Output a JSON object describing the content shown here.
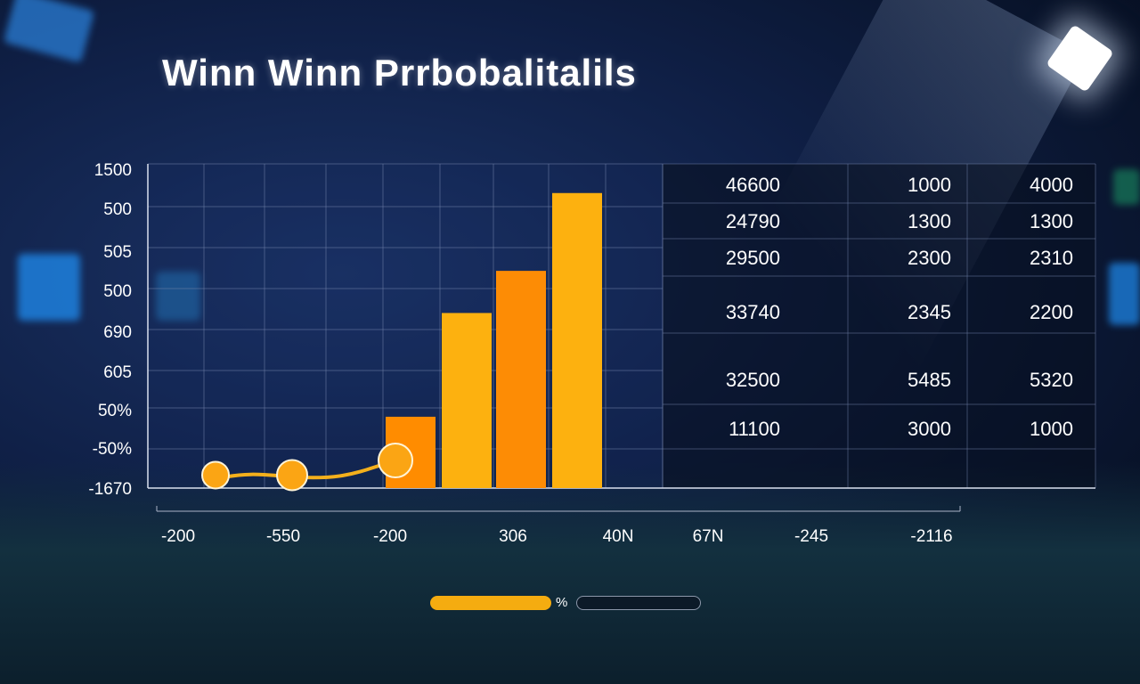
{
  "title": "Winn Winn Prrbobalitalils",
  "chart_data": {
    "type": "bar",
    "y_tick_labels": [
      "1500",
      "500",
      "505",
      "500",
      "690",
      "605",
      "50%",
      "-50%",
      "-1670"
    ],
    "x_tick_labels": [
      "-200",
      "-550",
      "-200",
      "306",
      "40N",
      "67N",
      "-245",
      "-2116"
    ],
    "bars": [
      {
        "level": 0.22,
        "color": "#ff8c00"
      },
      {
        "level": 0.54,
        "color": "#fdb10f"
      },
      {
        "level": 0.67,
        "color": "#fd8c05"
      },
      {
        "level": 0.91,
        "color": "#fdb10f"
      }
    ],
    "line_markers": [
      0.04,
      0.04,
      0.085
    ],
    "table": [
      [
        "46600",
        "1000",
        "4000"
      ],
      [
        "24790",
        "1300",
        "1300"
      ],
      [
        "29500",
        "2300",
        "2310"
      ],
      [
        "33740",
        "2345",
        "2200"
      ],
      [
        "32500",
        "5485",
        "5320"
      ],
      [
        "11100",
        "3000",
        "1000"
      ]
    ],
    "grid": true,
    "colors": {
      "bar": "#fdb10f",
      "bar_alt": "#fd8c05",
      "line": "#f4b01c",
      "grid": "#6f7fa8"
    }
  },
  "progress": {
    "label": "%",
    "fill_fraction": 0.47
  }
}
